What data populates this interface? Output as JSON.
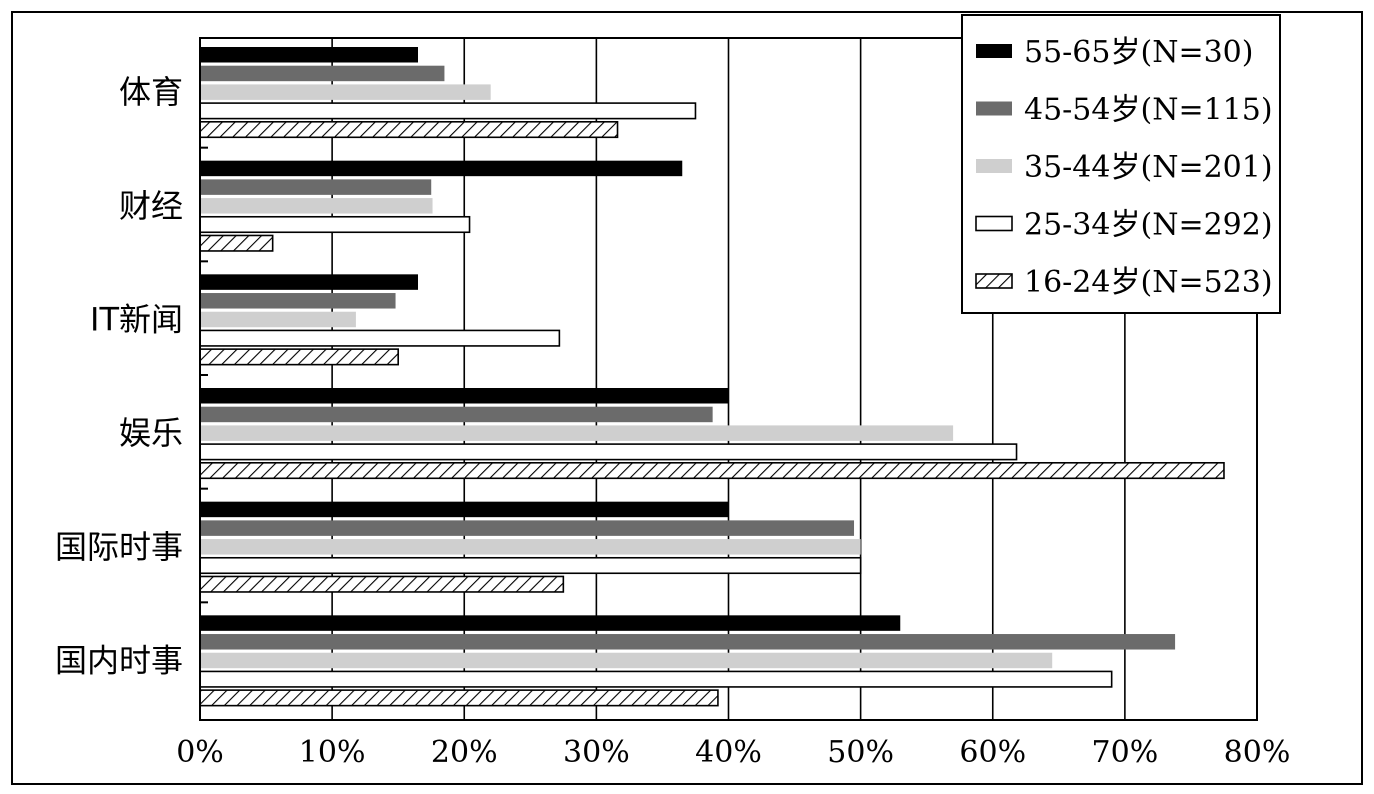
{
  "chart_data": {
    "type": "bar",
    "orientation": "horizontal",
    "title": "",
    "xlabel": "",
    "ylabel": "",
    "xlim": [
      0,
      80
    ],
    "x_ticks": [
      "0%",
      "10%",
      "20%",
      "30%",
      "40%",
      "50%",
      "60%",
      "70%",
      "80%"
    ],
    "grid": "vertical",
    "legend_position": "top-right",
    "categories": [
      "体育",
      "财经",
      "IT新闻",
      "娱乐",
      "国际时事",
      "国内时事"
    ],
    "series": [
      {
        "name": "55-65岁(N=30)",
        "style": "black",
        "values": [
          16.5,
          36.5,
          16.5,
          40.0,
          40.0,
          53.0
        ]
      },
      {
        "name": "45-54岁(N=115)",
        "style": "dark",
        "values": [
          18.5,
          17.5,
          14.8,
          38.8,
          49.5,
          73.8
        ]
      },
      {
        "name": "35-44岁(N=201)",
        "style": "light",
        "values": [
          22.0,
          17.6,
          11.8,
          57.0,
          50.0,
          64.5
        ]
      },
      {
        "name": "25-34岁(N=292)",
        "style": "white",
        "values": [
          37.5,
          20.4,
          27.2,
          61.8,
          50.0,
          69.0
        ]
      },
      {
        "name": "16-24岁(N=523)",
        "style": "hatch",
        "values": [
          31.6,
          5.5,
          15.0,
          77.5,
          27.5,
          39.2
        ]
      }
    ],
    "colors": {
      "black": "#000000",
      "dark": "#6b6b6b",
      "light": "#cfcfcf",
      "white": "#ffffff",
      "hatch": "#000000"
    }
  }
}
